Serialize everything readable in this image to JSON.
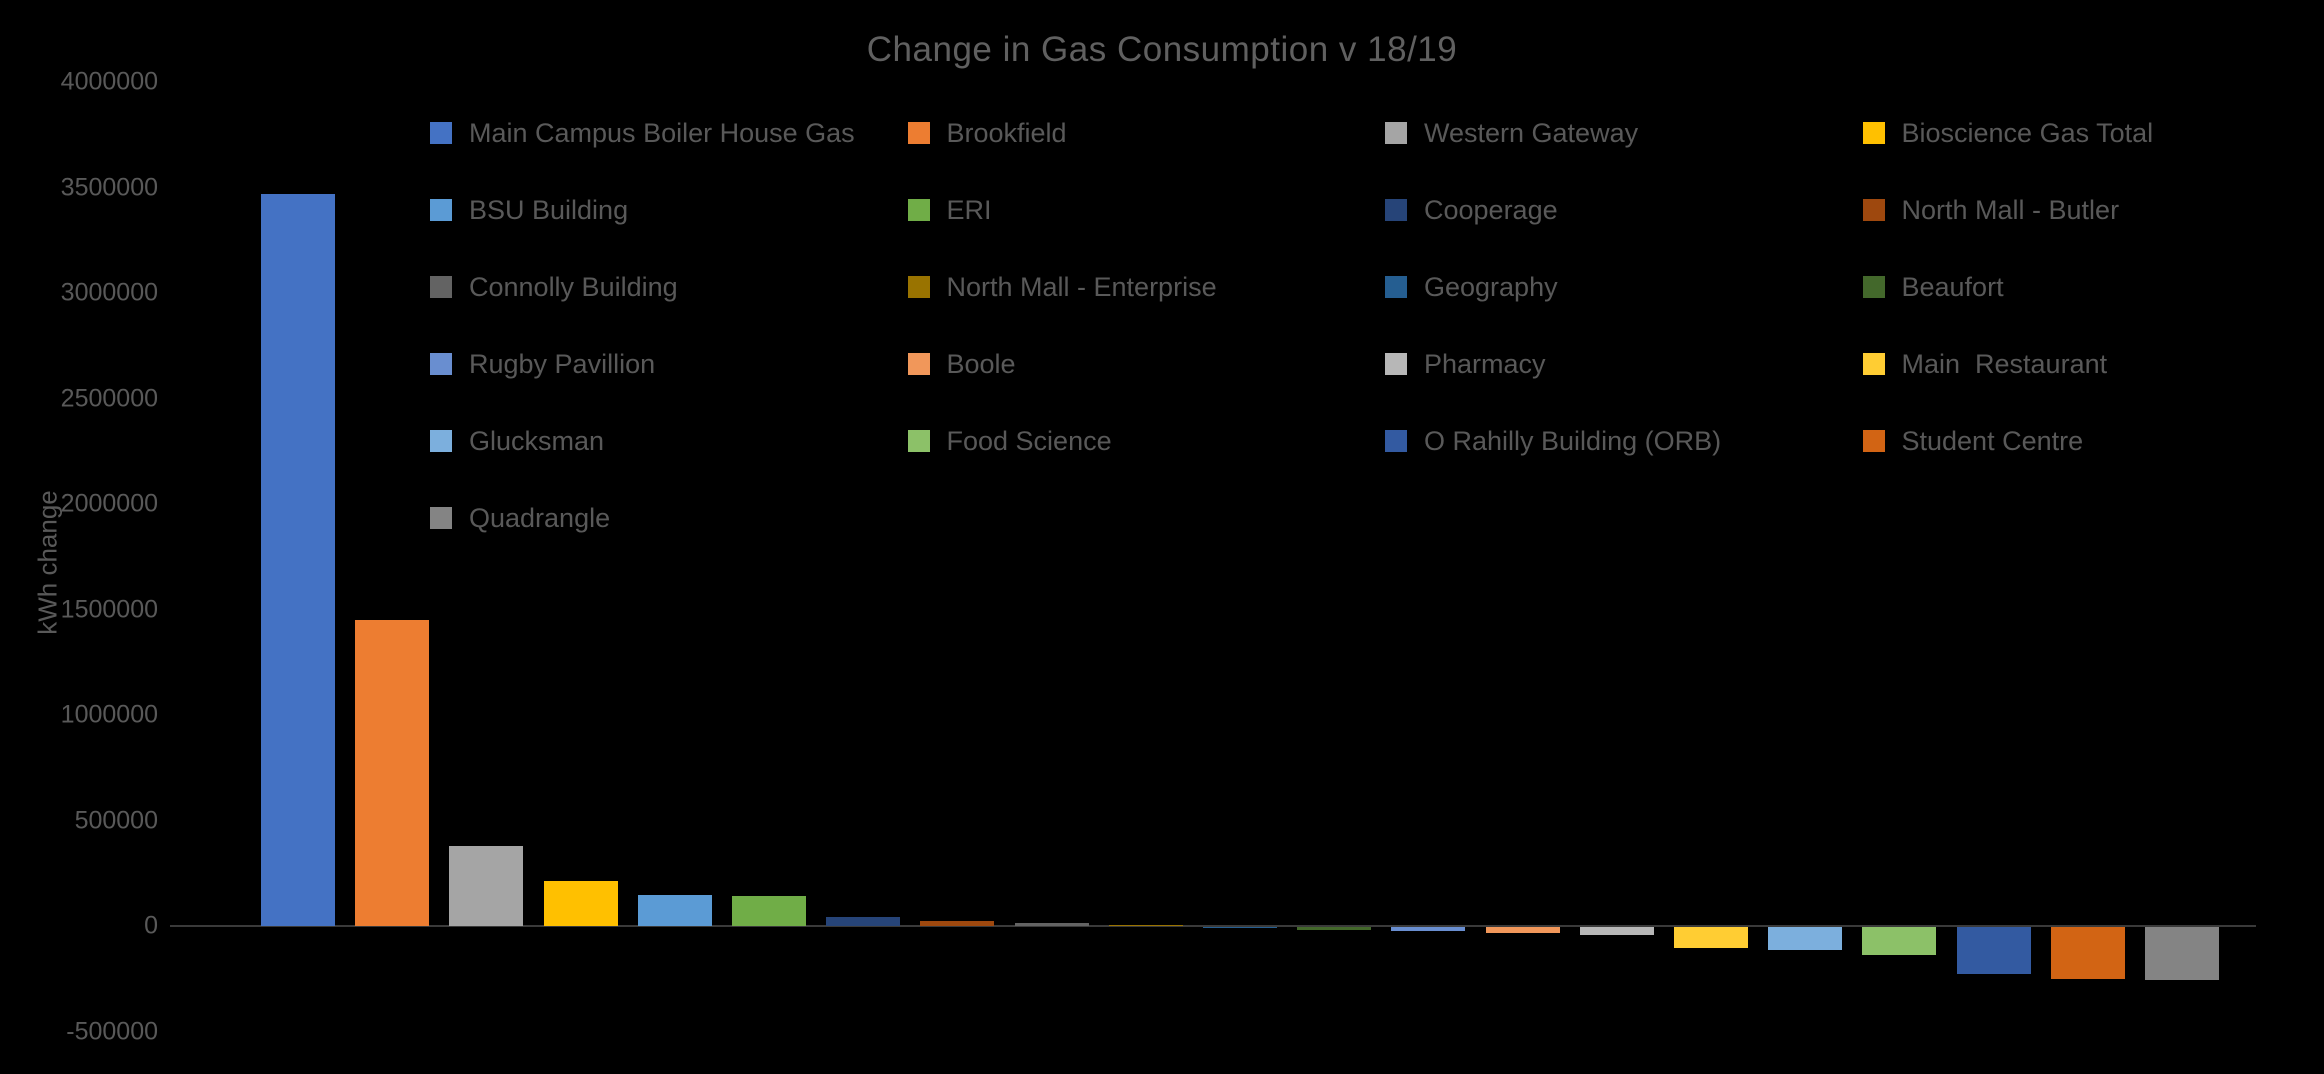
{
  "title": "Change in Gas Consumption v 18/19",
  "colors": {
    "background": "#000000",
    "title_text": "#606060",
    "axis_text": "#595959",
    "legend_text": "#595959",
    "axis_line": "#3a3a3a"
  },
  "y_axis": {
    "label": "kWh change",
    "tick_labels": [
      "4000000",
      "3500000",
      "3000000",
      "2500000",
      "2000000",
      "1500000",
      "1000000",
      "500000",
      "0",
      "-500000"
    ]
  },
  "chart_data": {
    "type": "bar",
    "title": "Change in Gas Consumption v 18/19",
    "xlabel": "",
    "ylabel": "kWh change",
    "ylim": [
      -500000,
      4000000
    ],
    "ytick_step": 500000,
    "grid": false,
    "legend_position": "top-inside, 4 columns, 6 rows",
    "series": [
      {
        "name": "Main Campus Boiler House Gas",
        "value": 3470000,
        "color": "#4472C4"
      },
      {
        "name": "Brookfield",
        "value": 1450000,
        "color": "#ED7D31"
      },
      {
        "name": "Western Gateway",
        "value": 380000,
        "color": "#A5A5A5"
      },
      {
        "name": "Bioscience Gas Total",
        "value": 215000,
        "color": "#FFC000"
      },
      {
        "name": "BSU Building",
        "value": 145000,
        "color": "#5B9BD5"
      },
      {
        "name": "ERI",
        "value": 140000,
        "color": "#70AD47"
      },
      {
        "name": "Cooperage",
        "value": 45000,
        "color": "#264478"
      },
      {
        "name": "North Mall - Butler",
        "value": 25000,
        "color": "#9E480E"
      },
      {
        "name": "Connolly Building",
        "value": 12000,
        "color": "#636363"
      },
      {
        "name": "North Mall - Enterprise",
        "value": 6000,
        "color": "#997300"
      },
      {
        "name": "Geography",
        "value": -2000,
        "color": "#255E91"
      },
      {
        "name": "Beaufort",
        "value": -12000,
        "color": "#43682B"
      },
      {
        "name": "Rugby Pavillion",
        "value": -20000,
        "color": "#698ED0"
      },
      {
        "name": "Boole",
        "value": -30000,
        "color": "#F1975A"
      },
      {
        "name": "Pharmacy",
        "value": -36000,
        "color": "#B7B7B7"
      },
      {
        "name": "Main  Restaurant",
        "value": -100000,
        "color": "#FFCD33"
      },
      {
        "name": "Glucksman",
        "value": -110000,
        "color": "#7CAFDD"
      },
      {
        "name": "Food Science",
        "value": -135000,
        "color": "#8CC168"
      },
      {
        "name": "O Rahilly Building (ORB)",
        "value": -225000,
        "color": "#335AA1"
      },
      {
        "name": "Student Centre",
        "value": -248000,
        "color": "#D26414"
      },
      {
        "name": "Quadrangle",
        "value": -250000,
        "color": "#848484"
      }
    ]
  }
}
